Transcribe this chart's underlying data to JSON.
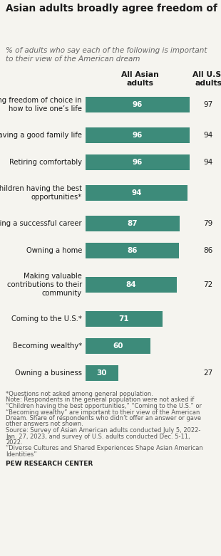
{
  "title": "Asian adults broadly agree freedom of choice, a good family life, comfortable retirement and opportunity for children are part of the American dream",
  "subtitle": "% of adults who say each of the following is important\nto their view of the American dream",
  "col1_header": "All Asian\nadults",
  "col2_header": "All U.S.\nadults",
  "categories": [
    "Having freedom of choice in\nhow to live one’s life",
    "Having a good family life",
    "Retiring comfortably",
    "Children having the best\nopportunities*",
    "Having a successful career",
    "Owning a home",
    "Making valuable\ncontributions to their\ncommunity",
    "Coming to the U.S.*",
    "Becoming wealthy*",
    "Owning a business"
  ],
  "asian_values": [
    96,
    96,
    96,
    94,
    87,
    86,
    84,
    71,
    60,
    30
  ],
  "us_values": [
    97,
    94,
    94,
    null,
    79,
    86,
    72,
    null,
    null,
    27
  ],
  "bar_color": "#3d8b7a",
  "bar_max": 100,
  "footnote_lines": [
    "*Questions not asked among general population.",
    "Note: Respondents in the general population were not asked if",
    "“Children having the best opportunities,” “Coming to the U.S.” or",
    "“Becoming wealthy” are important to their view of the American",
    "Dream. Share of respondents who didn’t offer an answer or gave",
    "other answers not shown.",
    "Source: Survey of Asian American adults conducted July 5, 2022-",
    "Jan. 27, 2023, and survey of U.S. adults conducted Dec. 5-11,",
    "2022.",
    "“Diverse Cultures and Shared Experiences Shape Asian American",
    "Identities”"
  ],
  "source_bold": "PEW RESEARCH CENTER",
  "background_color": "#f5f4ef",
  "text_color": "#1a1a1a",
  "bar_text_color": "#ffffff",
  "title_fontsize": 9.8,
  "subtitle_fontsize": 7.5,
  "header_fontsize": 7.8,
  "category_fontsize": 7.2,
  "value_fontsize": 7.5,
  "footnote_fontsize": 6.0
}
